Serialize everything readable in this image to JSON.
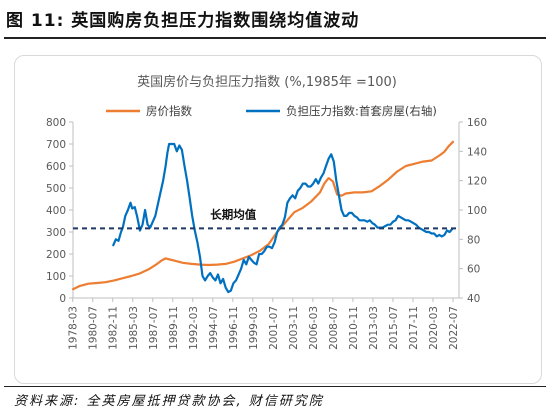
{
  "page": {
    "figure_title": "图 11:  英国购房负担压力指数围绕均值波动",
    "source_note": "资料来源:  全英房屋抵押贷款协会,  财信研究院"
  },
  "chart_data": {
    "type": "line",
    "title": "英国房价与负担压力指数  (%,1985年 =100)",
    "x_tick_labels": [
      "1978-03",
      "1980-07",
      "1982-11",
      "1985-03",
      "1987-07",
      "1989-11",
      "1992-03",
      "1994-07",
      "1996-11",
      "1999-03",
      "2001-07",
      "2003-11",
      "2006-03",
      "2008-07",
      "2010-11",
      "2013-03",
      "2015-07",
      "2017-11",
      "2020-03",
      "2022-07"
    ],
    "x_range": [
      1978.2,
      2023.2
    ],
    "left_axis": {
      "ticks": [
        0,
        100,
        200,
        300,
        400,
        500,
        600,
        700,
        800
      ],
      "ylim": [
        0,
        800
      ]
    },
    "right_axis": {
      "ticks": [
        40,
        60,
        80,
        100,
        120,
        140,
        160
      ],
      "ylim": [
        40,
        160
      ]
    },
    "legend_position": "top",
    "series": [
      {
        "name": "房价指数",
        "axis": "left",
        "color": "#ED7D31",
        "x": [
          1978.2,
          1979,
          1980,
          1981,
          1982,
          1983,
          1984,
          1985,
          1986,
          1987,
          1988,
          1988.5,
          1989,
          1989.5,
          1990,
          1991,
          1992,
          1993,
          1994,
          1995,
          1996,
          1997,
          1998,
          1999,
          2000,
          2001,
          2002,
          2003,
          2004,
          2005,
          2006,
          2007,
          2007.5,
          2008,
          2008.5,
          2009,
          2009.5,
          2010,
          2011,
          2012,
          2013,
          2014,
          2015,
          2016,
          2017,
          2018,
          2019,
          2020,
          2021,
          2021.5,
          2022,
          2022.5
        ],
        "y": [
          40,
          55,
          65,
          68,
          72,
          80,
          90,
          100,
          112,
          130,
          155,
          170,
          180,
          175,
          170,
          160,
          155,
          152,
          150,
          152,
          155,
          165,
          180,
          195,
          215,
          245,
          300,
          345,
          390,
          410,
          440,
          480,
          520,
          545,
          530,
          470,
          465,
          475,
          480,
          480,
          485,
          510,
          540,
          575,
          600,
          610,
          620,
          625,
          650,
          665,
          690,
          710
        ]
      },
      {
        "name": "负担压力指数:首套房屋(右轴)",
        "axis": "right",
        "color": "#0070C0",
        "x": [
          1982.9,
          1983.2,
          1983.5,
          1983.8,
          1984.0,
          1984.3,
          1984.6,
          1984.9,
          1985.1,
          1985.4,
          1985.7,
          1986.0,
          1986.3,
          1986.6,
          1986.9,
          1987.2,
          1987.5,
          1987.8,
          1988.1,
          1988.4,
          1988.7,
          1989.0,
          1989.2,
          1989.4,
          1989.7,
          1990.0,
          1990.3,
          1990.6,
          1990.9,
          1991.2,
          1991.5,
          1991.8,
          1992.1,
          1992.4,
          1992.7,
          1993.0,
          1993.3,
          1993.6,
          1993.9,
          1994.2,
          1994.5,
          1994.8,
          1995.1,
          1995.4,
          1995.7,
          1996.0,
          1996.3,
          1996.6,
          1996.9,
          1997.2,
          1997.5,
          1997.8,
          1998.1,
          1998.4,
          1998.7,
          1999.0,
          1999.3,
          1999.6,
          1999.9,
          2000.2,
          2000.5,
          2000.8,
          2001.1,
          2001.4,
          2001.7,
          2002.0,
          2002.3,
          2002.6,
          2002.9,
          2003.2,
          2003.5,
          2003.8,
          2004.1,
          2004.4,
          2004.7,
          2005.0,
          2005.3,
          2005.6,
          2005.9,
          2006.2,
          2006.5,
          2006.8,
          2007.1,
          2007.4,
          2007.7,
          2008.0,
          2008.3,
          2008.6,
          2008.9,
          2009.2,
          2009.5,
          2009.8,
          2010.1,
          2010.4,
          2010.7,
          2011.0,
          2011.3,
          2011.6,
          2011.9,
          2012.2,
          2012.5,
          2012.8,
          2013.1,
          2013.4,
          2013.7,
          2014.0,
          2014.3,
          2014.6,
          2014.9,
          2015.2,
          2015.5,
          2015.8,
          2016.1,
          2016.4,
          2016.7,
          2017.0,
          2017.3,
          2017.6,
          2017.9,
          2018.2,
          2018.5,
          2018.8,
          2019.1,
          2019.4,
          2019.7,
          2020.0,
          2020.3,
          2020.6,
          2020.9,
          2021.2,
          2021.5,
          2021.8,
          2022.1,
          2022.4
        ],
        "y": [
          76,
          80,
          79,
          85,
          88,
          96,
          100,
          105,
          101,
          102,
          95,
          86,
          90,
          100,
          90,
          88,
          92,
          96,
          104,
          112,
          120,
          130,
          139,
          145,
          145,
          145,
          140,
          144,
          141,
          130,
          120,
          108,
          96,
          86,
          78,
          68,
          55,
          52,
          55,
          57,
          54,
          52,
          56,
          50,
          53,
          47,
          44,
          45,
          50,
          52,
          56,
          60,
          66,
          63,
          68,
          66,
          64,
          63,
          70,
          70,
          72,
          75,
          75,
          74,
          78,
          85,
          88,
          90,
          95,
          105,
          108,
          110,
          108,
          113,
          115,
          118,
          118,
          116,
          116,
          118,
          121,
          118,
          122,
          125,
          130,
          135,
          138,
          133,
          120,
          110,
          100,
          96,
          96,
          98,
          98,
          96,
          95,
          93,
          93,
          93,
          92,
          93,
          91,
          90,
          88,
          88,
          88,
          89,
          90,
          90,
          92,
          93,
          96,
          95,
          94,
          93,
          93,
          92,
          91,
          90,
          88,
          87,
          86,
          85,
          85,
          84,
          84,
          82,
          83,
          82,
          83,
          86,
          85,
          87
        ]
      }
    ],
    "reference_line": {
      "label": "长期均值",
      "value_right_axis": 87.5,
      "style": "dashed",
      "color": "#1F3864"
    }
  }
}
